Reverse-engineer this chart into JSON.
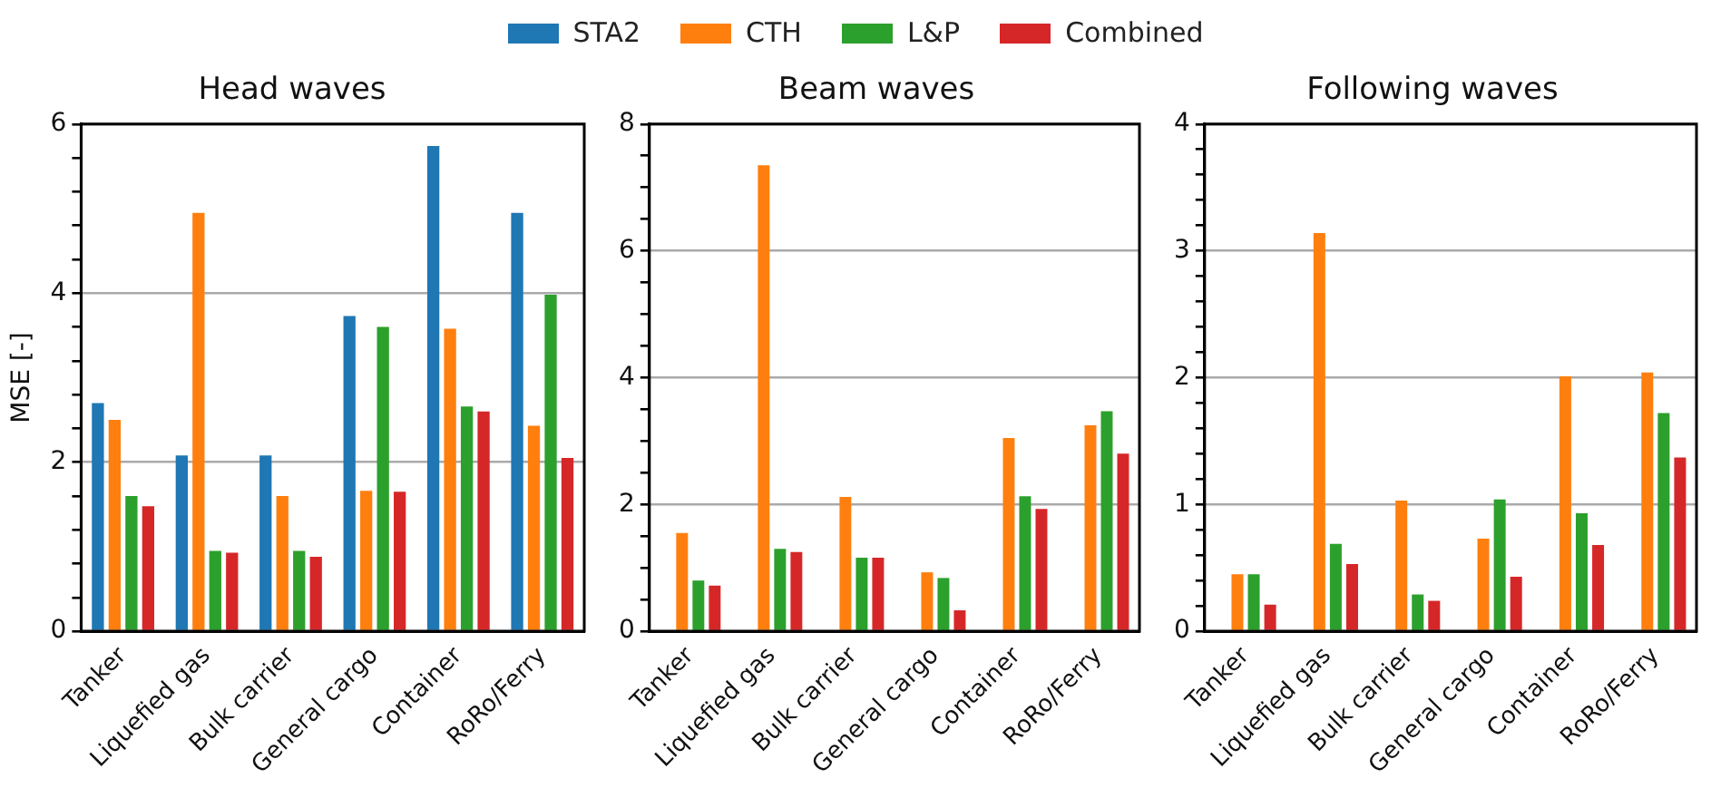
{
  "chart_data": [
    {
      "type": "bar",
      "title": "Head waves",
      "ylabel": "MSE [-]",
      "categories": [
        "Tanker",
        "Liquefied gas",
        "Bulk carrier",
        "General cargo",
        "Container",
        "RoRo/Ferry"
      ],
      "series": [
        {
          "name": "STA2",
          "color": "#1f77b4",
          "values": [
            2.7,
            2.08,
            2.08,
            3.73,
            5.74,
            4.95
          ]
        },
        {
          "name": "CTH",
          "color": "#ff7f0e",
          "values": [
            2.5,
            4.95,
            1.6,
            1.66,
            3.58,
            2.43
          ]
        },
        {
          "name": "L&P",
          "color": "#2ca02c",
          "values": [
            1.6,
            0.95,
            0.95,
            3.6,
            2.66,
            3.98
          ]
        },
        {
          "name": "Combined",
          "color": "#d62728",
          "values": [
            1.48,
            0.93,
            0.88,
            1.65,
            2.6,
            2.05
          ]
        }
      ],
      "ylim": [
        0,
        6
      ],
      "yticks": [
        0,
        {
          "value": 0.4,
          "label": null
        },
        {
          "value": 0.8,
          "label": null
        },
        {
          "value": 1.2,
          "label": null
        },
        {
          "value": 1.6,
          "label": null
        },
        2,
        {
          "value": 2.4,
          "label": null
        },
        {
          "value": 2.8,
          "label": null
        },
        {
          "value": 3.2,
          "label": null
        },
        {
          "value": 3.6,
          "label": null
        },
        4,
        {
          "value": 4.4,
          "label": null
        },
        {
          "value": 4.8,
          "label": null
        },
        {
          "value": 5.2,
          "label": null
        },
        {
          "value": 5.6,
          "label": null
        },
        6
      ],
      "grid": "y",
      "legend": "top"
    },
    {
      "type": "bar",
      "title": "Beam waves",
      "categories": [
        "Tanker",
        "Liquefied gas",
        "Bulk carrier",
        "General cargo",
        "Container",
        "RoRo/Ferry"
      ],
      "series": [
        {
          "values": [
            null,
            null,
            null,
            null,
            null,
            null
          ]
        },
        {
          "color": "#ff7f0e",
          "values": [
            1.55,
            7.35,
            2.12,
            0.93,
            3.05,
            3.25
          ]
        },
        {
          "color": "#2ca02c",
          "values": [
            0.8,
            1.3,
            1.16,
            0.84,
            2.13,
            3.47
          ]
        },
        {
          "color": "#d62728",
          "values": [
            0.72,
            1.25,
            1.16,
            0.33,
            1.93,
            2.8
          ]
        }
      ],
      "ylim": [
        0,
        8
      ],
      "yticks": [
        0,
        {
          "value": 0.5,
          "label": null
        },
        {
          "value": 1,
          "label": null
        },
        {
          "value": 1.5,
          "label": null
        },
        2,
        {
          "value": 2.5,
          "label": null
        },
        {
          "value": 3,
          "label": null
        },
        {
          "value": 3.5,
          "label": null
        },
        4,
        {
          "value": 4.5,
          "label": null
        },
        {
          "value": 5,
          "label": null
        },
        {
          "value": 5.5,
          "label": null
        },
        6,
        {
          "value": 6.5,
          "label": null
        },
        {
          "value": 7,
          "label": null
        },
        {
          "value": 7.5,
          "label": null
        },
        8
      ],
      "grid": "y"
    },
    {
      "type": "bar",
      "title": "Following waves",
      "categories": [
        "Tanker",
        "Liquefied gas",
        "Bulk carrier",
        "General cargo",
        "Container",
        "RoRo/Ferry"
      ],
      "series": [
        {
          "values": [
            null,
            null,
            null,
            null,
            null,
            null
          ]
        },
        {
          "color": "#ff7f0e",
          "values": [
            0.45,
            3.14,
            1.03,
            0.73,
            2.01,
            2.04
          ]
        },
        {
          "color": "#2ca02c",
          "values": [
            0.45,
            0.69,
            0.29,
            1.04,
            0.93,
            1.72
          ]
        },
        {
          "color": "#d62728",
          "values": [
            0.21,
            0.53,
            0.24,
            0.43,
            0.68,
            1.37
          ]
        }
      ],
      "ylim": [
        0,
        4
      ],
      "yticks": [
        0,
        {
          "value": 0.2,
          "label": null
        },
        {
          "value": 0.4,
          "label": null
        },
        {
          "value": 0.6,
          "label": null
        },
        {
          "value": 0.8,
          "label": null
        },
        1,
        {
          "value": 1.2,
          "label": null
        },
        {
          "value": 1.4,
          "label": null
        },
        {
          "value": 1.6,
          "label": null
        },
        {
          "value": 1.8,
          "label": null
        },
        2,
        {
          "value": 2.2,
          "label": null
        },
        {
          "value": 2.4,
          "label": null
        },
        {
          "value": 2.6,
          "label": null
        },
        {
          "value": 2.8,
          "label": null
        },
        3,
        {
          "value": 3.2,
          "label": null
        },
        {
          "value": 3.4,
          "label": null
        },
        {
          "value": 3.6,
          "label": null
        },
        {
          "value": 3.8,
          "label": null
        },
        4
      ],
      "grid": "y"
    }
  ]
}
